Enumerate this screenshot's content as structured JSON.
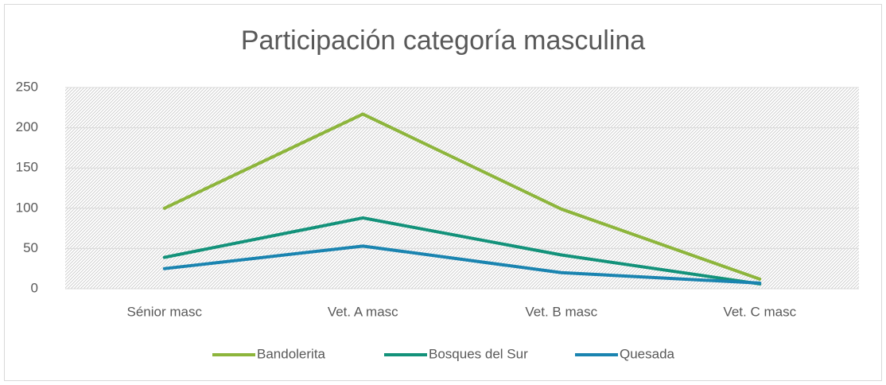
{
  "chart_data": {
    "type": "line",
    "title": "Participación categoría masculina",
    "categories": [
      "Sénior masc",
      "Vet. A masc",
      "Vet. B masc",
      "Vet. C masc"
    ],
    "series": [
      {
        "name": "Bandolerita",
        "color": "#8db53c",
        "values": [
          100,
          217,
          99,
          12
        ]
      },
      {
        "name": "Bosques del Sur",
        "color": "#13927a",
        "values": [
          39,
          88,
          42,
          6
        ]
      },
      {
        "name": "Quesada",
        "color": "#1a84b0",
        "values": [
          25,
          53,
          20,
          7
        ]
      }
    ],
    "ylim": [
      0,
      250
    ],
    "yticks": [
      0,
      50,
      100,
      150,
      200,
      250
    ],
    "grid": true,
    "legend": "bottom"
  }
}
